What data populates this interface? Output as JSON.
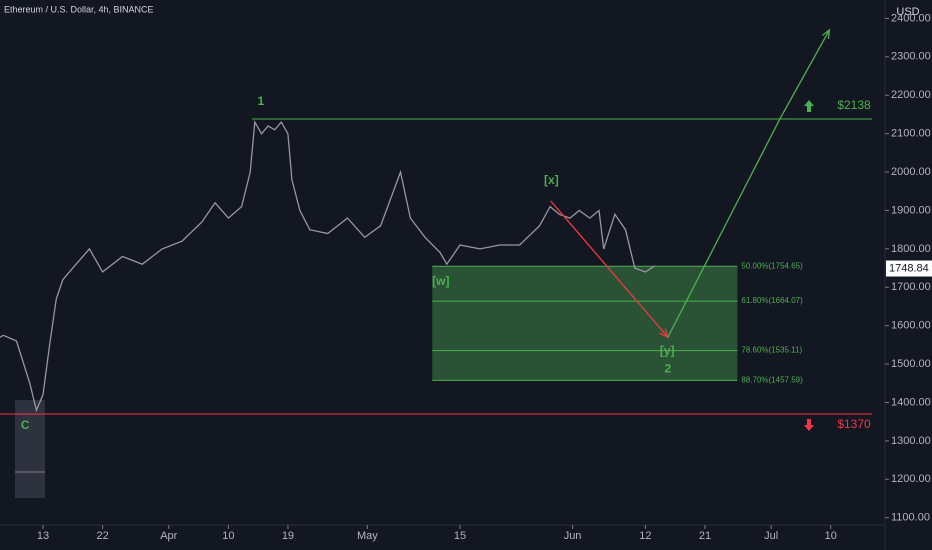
{
  "chart_data": {
    "type": "line",
    "title": "Ethereum / U.S. Dollar, 4h, BINANCE",
    "currency": "USD",
    "last_price": 1748.84,
    "series": [
      {
        "color": "#9598a1",
        "x": [
          65.5,
          66,
          68,
          70,
          71,
          72,
          73,
          74,
          75,
          77,
          79,
          81,
          84,
          87,
          90,
          93,
          96,
          98,
          100,
          102,
          103.3,
          104,
          105,
          106,
          107,
          108,
          109,
          109.6,
          110.8,
          112.3,
          115,
          118,
          120.6,
          123,
          126,
          127.5,
          129.7,
          132,
          133,
          135,
          138,
          141,
          144,
          147,
          148.6,
          150,
          151.6,
          153,
          154.6,
          156,
          156.7,
          158.4,
          160,
          161.4,
          163,
          164.4
        ],
        "values": [
          1570,
          1575,
          1560,
          1450,
          1380,
          1420,
          1550,
          1670,
          1720,
          1760,
          1800,
          1740,
          1780,
          1760,
          1800,
          1820,
          1870,
          1920,
          1880,
          1910,
          2000,
          2130,
          2100,
          2120,
          2110,
          2130,
          2100,
          1980,
          1900,
          1850,
          1840,
          1880,
          1830,
          1860,
          2000,
          1880,
          1830,
          1790,
          1760,
          1810,
          1800,
          1810,
          1810,
          1860,
          1910,
          1890,
          1880,
          1900,
          1880,
          1900,
          1800,
          1890,
          1850,
          1750,
          1740,
          1755
        ]
      }
    ],
    "xlim": [
      65.5,
      199.2
    ],
    "xticks": [
      {
        "value": 72,
        "label": "13"
      },
      {
        "value": 81,
        "label": "22"
      },
      {
        "value": 91,
        "label": "Apr"
      },
      {
        "value": 100,
        "label": "10"
      },
      {
        "value": 109,
        "label": "19"
      },
      {
        "value": 121,
        "label": "May"
      },
      {
        "value": 135,
        "label": "15"
      },
      {
        "value": 152,
        "label": "Jun"
      },
      {
        "value": 163,
        "label": "12"
      },
      {
        "value": 172,
        "label": "21"
      },
      {
        "value": 182,
        "label": "Jul"
      },
      {
        "value": 191,
        "label": "10"
      }
    ],
    "ylim": [
      1081,
      2448
    ],
    "yticks": [
      {
        "value": 1100,
        "label": "1100.00"
      },
      {
        "value": 1200,
        "label": "1200.00"
      },
      {
        "value": 1300,
        "label": "1300.00"
      },
      {
        "value": 1400,
        "label": "1400.00"
      },
      {
        "value": 1500,
        "label": "1500.00"
      },
      {
        "value": 1600,
        "label": "1600.00"
      },
      {
        "value": 1700,
        "label": "1700.00"
      },
      {
        "value": 1800,
        "label": "1800.00"
      },
      {
        "value": 1900,
        "label": "1900.00"
      },
      {
        "value": 2000,
        "label": "2000.00"
      },
      {
        "value": 2100,
        "label": "2100.00"
      },
      {
        "value": 2200,
        "label": "2200.00"
      },
      {
        "value": 2300,
        "label": "2300.00"
      },
      {
        "value": 2400,
        "label": "2400.00"
      }
    ],
    "levels": [
      {
        "value": 2138,
        "label": "$2138",
        "color": "#4caf50",
        "x_start": 103.6,
        "direction": "up"
      },
      {
        "value": 1370,
        "label": "$1370",
        "color": "#f23645",
        "x_start": 65.5,
        "direction": "down"
      }
    ],
    "fib": {
      "x": [
        130.8,
        176.9
      ],
      "color": "#4caf50",
      "levels": [
        {
          "value": 1754.65,
          "label": "50.00%(1754.65)"
        },
        {
          "value": 1664.07,
          "label": "61.80%(1664.07)"
        },
        {
          "value": 1535.11,
          "label": "78.60%(1535.11)"
        },
        {
          "value": 1457.59,
          "label": "88.70%(1457.59)"
        }
      ]
    },
    "red_path": {
      "color": "#f23645",
      "x": [
        148.7,
        166.4
      ],
      "values": [
        1925,
        1570
      ]
    },
    "green_path": {
      "color": "#4caf50",
      "x": [
        166.4,
        183.3,
        190.8
      ],
      "values": [
        1570,
        2138,
        2370
      ]
    },
    "waves": [
      {
        "label": "1",
        "x": 104.9,
        "y": 2183,
        "color": "#4caf50"
      },
      {
        "label": "[x]",
        "x": 148.8,
        "y": 1977,
        "color": "#4caf50"
      },
      {
        "label": "[w]",
        "x": 132.1,
        "y": 1714,
        "color": "#4caf50"
      },
      {
        "label": "[y]",
        "x": 166.3,
        "y": 1533,
        "color": "#4caf50"
      },
      {
        "label": "2",
        "x": 166.4,
        "y": 1486,
        "color": "#4caf50"
      },
      {
        "label": "C",
        "x": 69.3,
        "y": 1339,
        "color": "#4caf50"
      }
    ]
  }
}
